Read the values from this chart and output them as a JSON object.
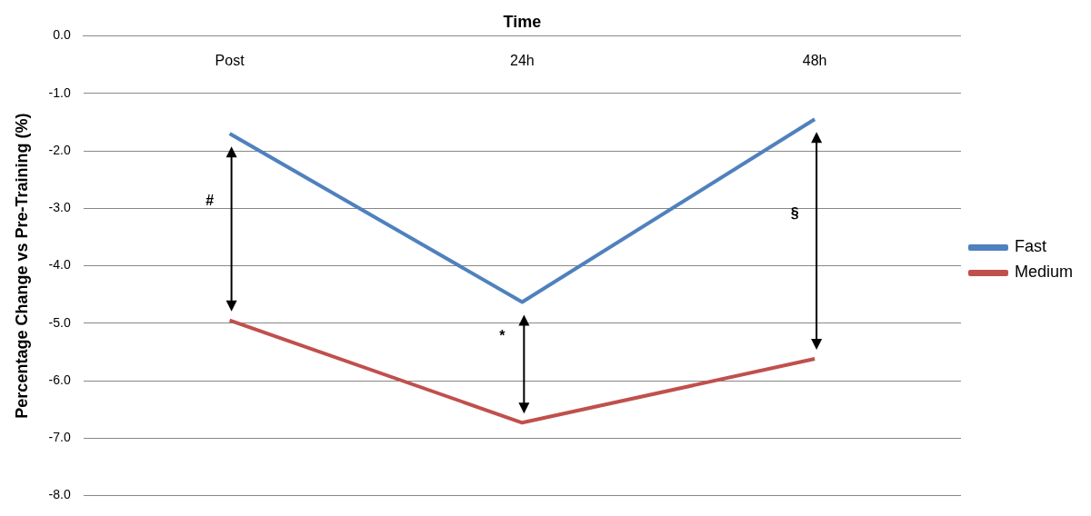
{
  "chart_data": {
    "type": "line",
    "xlabel": "Time",
    "ylabel": "Percentage Change vs Pre-Training (%)",
    "categories": [
      "Post",
      "24h",
      "48h"
    ],
    "series": [
      {
        "name": "Fast",
        "color": "#4f81bd",
        "values": [
          -1.7,
          -4.63,
          -1.45
        ]
      },
      {
        "name": "Medium",
        "color": "#c0504d",
        "values": [
          -4.95,
          -6.73,
          -5.62
        ]
      }
    ],
    "ylim": [
      -8,
      0
    ],
    "yticks": [
      {
        "value": 0,
        "label": "0.0"
      },
      {
        "value": -1,
        "label": "-1.0"
      },
      {
        "value": -2,
        "label": "-2.0"
      },
      {
        "value": -3,
        "label": "-3.0"
      },
      {
        "value": -4,
        "label": "-4.0"
      },
      {
        "value": -5,
        "label": "-5.0"
      },
      {
        "value": -6,
        "label": "-6.0"
      },
      {
        "value": -7,
        "label": "-7.0"
      },
      {
        "value": -8,
        "label": "-8.0"
      }
    ],
    "grid": "y",
    "legend": "right",
    "marker": "none",
    "line_style": "solid",
    "annotations": [
      "#",
      "*",
      "§"
    ]
  }
}
